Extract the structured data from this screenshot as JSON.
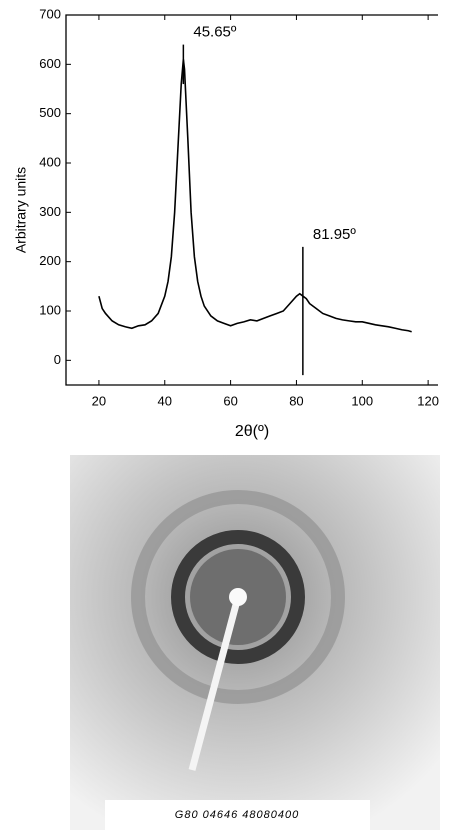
{
  "chart_data": {
    "type": "line",
    "ylabel": "Arbitrary units",
    "xlabel": "2θ(º)",
    "xlim": [
      10,
      123
    ],
    "xticks": [
      20,
      40,
      60,
      80,
      100,
      120
    ],
    "ylim": [
      -50,
      700
    ],
    "yticks": [
      0,
      100,
      200,
      300,
      400,
      500,
      600,
      700
    ],
    "series": [
      {
        "color": "#000000",
        "x": [
          20,
          21,
          22,
          24,
          26,
          28,
          30,
          32,
          34,
          36,
          38,
          40,
          41,
          42,
          43,
          44,
          45,
          45.65,
          46,
          47,
          48,
          49,
          50,
          51,
          52,
          54,
          56,
          58,
          60,
          62,
          64,
          66,
          68,
          70,
          72,
          74,
          76,
          78,
          80,
          81,
          82,
          83,
          84,
          86,
          88,
          90,
          92,
          94,
          96,
          98,
          100,
          102,
          104,
          106,
          108,
          110,
          112,
          114,
          115
        ],
        "values": [
          130,
          105,
          95,
          80,
          72,
          68,
          65,
          70,
          72,
          80,
          95,
          130,
          160,
          210,
          300,
          430,
          560,
          610,
          590,
          450,
          300,
          210,
          160,
          130,
          110,
          90,
          80,
          75,
          70,
          75,
          78,
          82,
          80,
          85,
          90,
          95,
          100,
          115,
          130,
          135,
          130,
          125,
          115,
          105,
          95,
          90,
          85,
          82,
          80,
          78,
          78,
          75,
          72,
          70,
          68,
          65,
          62,
          60,
          58
        ]
      }
    ],
    "markers": [
      {
        "x": 45.65,
        "y0": 560,
        "y1": 640,
        "label": "45.65º"
      },
      {
        "x": 81.95,
        "y0": -30,
        "y1": 230,
        "label": "81.95º"
      }
    ]
  },
  "image_label": "G80 04646 48080400"
}
